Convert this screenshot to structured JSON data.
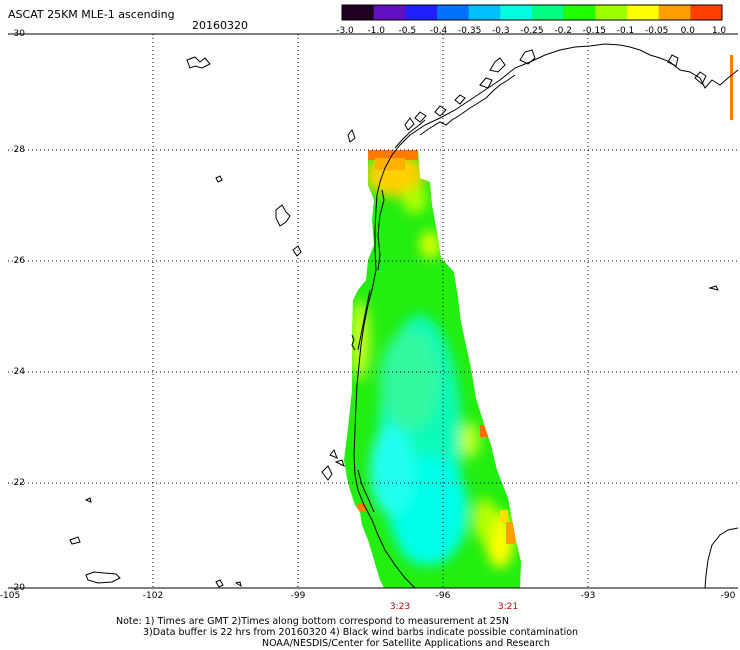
{
  "header": {
    "title": "ASCAT 25KM MLE-1 ascending",
    "date": "20160320"
  },
  "colorbar": {
    "labels": [
      "-3.0",
      "-1.0",
      "-0.5",
      "-0.4",
      "-0.35",
      "-0.3",
      "-0.25",
      "-0.2",
      "-0.15",
      "-0.1",
      "-0.05",
      "0.0",
      "1.0"
    ],
    "colors": [
      "#200020",
      "#6010c0",
      "#2020ff",
      "#0070ff",
      "#00c0ff",
      "#00ffe0",
      "#00ff80",
      "#20ff00",
      "#a0ff00",
      "#ffff00",
      "#ffa000",
      "#ff4000"
    ]
  },
  "axes": {
    "lat_labels": [
      "30",
      "28",
      "26",
      "24",
      "22",
      "20"
    ],
    "lon_labels": [
      "-105",
      "-102",
      "-99",
      "-96",
      "-93",
      "-90"
    ],
    "grid": "dotted"
  },
  "time_labels": [
    "3:23",
    "3:21"
  ],
  "footer": {
    "line1": "Note: 1) Times are GMT 2)Times along bottom correspond to measurement at 25N",
    "line2": "3)Data buffer is 22 hrs from 20160320 4) Black wind barbs indicate possible contamination",
    "line3": "NOAA/NESDIS/Center for Satellite Applications and Research"
  }
}
